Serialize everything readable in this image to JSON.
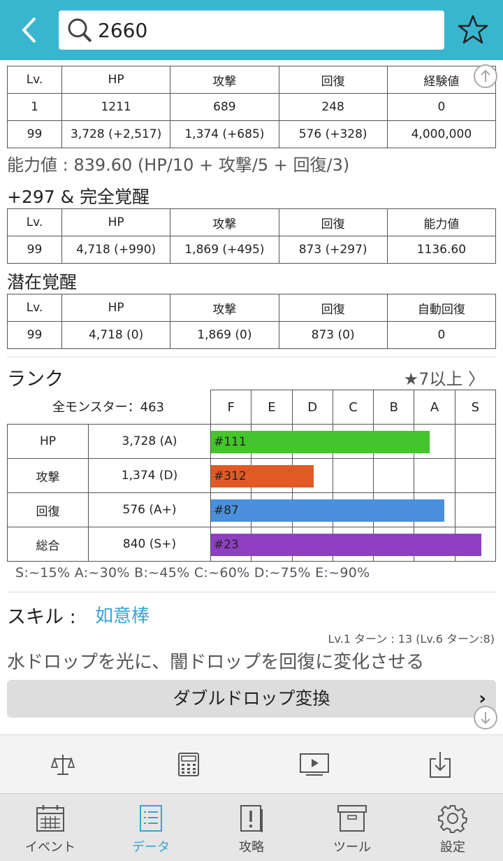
{
  "header": {
    "search_value": "2660"
  },
  "base_stats": {
    "headers": [
      "Lv.",
      "HP",
      "攻撃",
      "回復",
      "経験値"
    ],
    "rows": [
      [
        "1",
        "1211",
        "689",
        "248",
        "0"
      ],
      [
        "99",
        "3,728 (+2,517)",
        "1,374 (+685)",
        "576 (+328)",
        "4,000,000"
      ]
    ],
    "formula": "能力値 : 839.60 (HP/10 + 攻撃/5 + 回復/3)"
  },
  "awakening": {
    "title": "+297 & 完全覚醒",
    "headers": [
      "Lv.",
      "HP",
      "攻撃",
      "回復",
      "能力値"
    ],
    "rows": [
      [
        "99",
        "4,718 (+990)",
        "1,869 (+495)",
        "873 (+297)",
        "1136.60"
      ]
    ]
  },
  "latent": {
    "title": "潜在覚醒",
    "headers": [
      "Lv.",
      "HP",
      "攻撃",
      "回復",
      "自動回復"
    ],
    "rows": [
      [
        "99",
        "4,718 (0)",
        "1,869 (0)",
        "873 (0)",
        "0"
      ]
    ]
  },
  "rank": {
    "title": "ランク",
    "filter_link": "★7以上 〉",
    "all_monsters": "全モンスター：463",
    "grades": [
      "F",
      "E",
      "D",
      "C",
      "B",
      "A",
      "S"
    ],
    "rows": [
      {
        "label": "HP",
        "value": "3,728 (A)",
        "rank": "#111",
        "fill": 0.77,
        "color": "#43c52b"
      },
      {
        "label": "攻撃",
        "value": "1,374 (D)",
        "rank": "#312",
        "fill": 0.36,
        "color": "#e15a26"
      },
      {
        "label": "回復",
        "value": "576 (A+)",
        "rank": "#87",
        "fill": 0.82,
        "color": "#4a90de"
      },
      {
        "label": "総合",
        "value": "840 (S+)",
        "rank": "#23",
        "fill": 0.95,
        "color": "#8e3fc4"
      }
    ],
    "legend": "S:~15% A:~30% B:~45% C:~60% D:~75% E:~90%"
  },
  "skill": {
    "label": "スキル :",
    "name": "如意棒",
    "turn": "Lv.1 ターン : 13 (Lv.6 ターン:8)",
    "description": "水ドロップを光に、闇ドロップを回復に変化させる",
    "button_label": "ダブルドロップ変換",
    "button_chevron": "›"
  },
  "toolbar": {
    "icons": [
      "balance-scale-icon",
      "calculator-icon",
      "video-play-icon",
      "download-icon"
    ]
  },
  "tabs": [
    {
      "label": "イベント",
      "icon": "calendar-icon",
      "active": false
    },
    {
      "label": "データ",
      "icon": "list-doc-icon",
      "active": true
    },
    {
      "label": "攻略",
      "icon": "exclamation-doc-icon",
      "active": false
    },
    {
      "label": "ツール",
      "icon": "box-icon",
      "active": false
    },
    {
      "label": "設定",
      "icon": "gear-icon",
      "active": false
    }
  ],
  "colors": {
    "header_bg": "#38b6cf",
    "accent": "#38a4d6"
  }
}
